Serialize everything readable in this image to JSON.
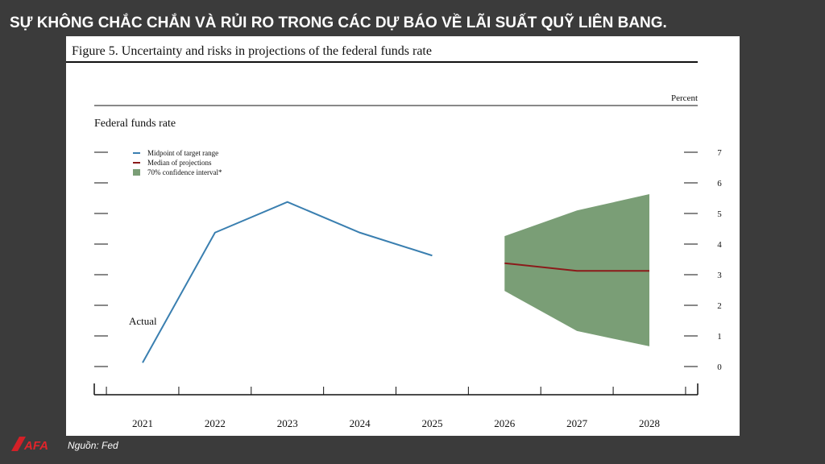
{
  "header": {
    "title": "SỰ KHÔNG CHẮC CHẮN VÀ RỦI RO TRONG CÁC DỰ BÁO VỀ LÃI SUẤT QUỸ LIÊN BANG."
  },
  "footer": {
    "logo": "AFA",
    "source": "Nguồn: Fed"
  },
  "chart_data": {
    "type": "line",
    "title": "Figure 5. Uncertainty and risks in projections of the federal funds rate",
    "subtitle": "Federal funds rate",
    "y_label": "Percent",
    "annotation": "Actual",
    "categories": [
      "2021",
      "2022",
      "2023",
      "2024",
      "2025",
      "2026",
      "2027",
      "2028"
    ],
    "series": [
      {
        "name": "Midpoint of target range",
        "color": "#3a7fb0",
        "values": [
          0.125,
          4.375,
          5.375,
          4.375,
          3.625,
          null,
          null,
          null
        ]
      },
      {
        "name": "Median of projections",
        "color": "#8b1a1a",
        "values": [
          null,
          null,
          null,
          null,
          null,
          3.375,
          3.125,
          3.125
        ]
      },
      {
        "name": "70% confidence interval*",
        "color": "#7a9e76",
        "type": "band",
        "lower": [
          null,
          null,
          null,
          null,
          null,
          2.47,
          1.16,
          0.66
        ],
        "upper": [
          null,
          null,
          null,
          null,
          null,
          4.26,
          5.1,
          5.63
        ]
      }
    ],
    "ylim": [
      0,
      7
    ],
    "yticks": [
      0,
      1,
      2,
      3,
      4,
      5,
      6,
      7
    ],
    "legend": "upper-left"
  }
}
